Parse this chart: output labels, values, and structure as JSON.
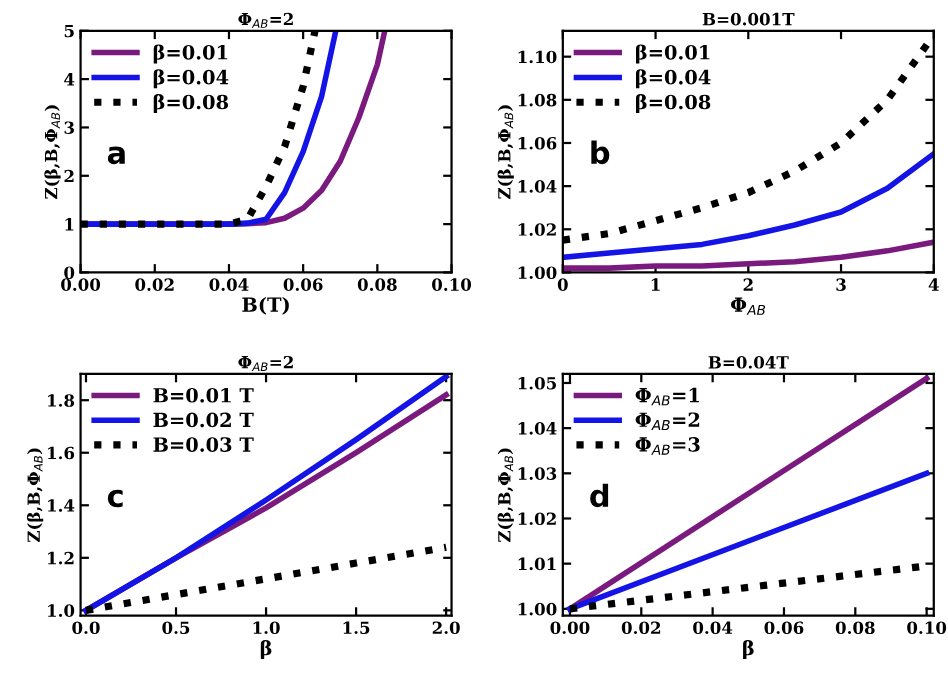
{
  "chart_data": [
    {
      "type": "line",
      "title": "Φ$_{AB}$=2",
      "xlabel": "B(T)",
      "ylabel": "Z(β,B,Φ$_{AB}$)",
      "annotations": [
        "a"
      ],
      "legend": "top left",
      "grid": false,
      "xlim": [
        0,
        0.1
      ],
      "ylim": [
        0,
        5
      ],
      "xticks": [
        {
          "value": 0,
          "label": "0.00"
        },
        {
          "value": 0.02,
          "label": "0.02"
        },
        {
          "value": 0.04,
          "label": "0.04"
        },
        {
          "value": 0.06,
          "label": "0.06"
        },
        {
          "value": 0.08,
          "label": "0.08"
        },
        {
          "value": 0.1,
          "label": "0.10"
        }
      ],
      "yticks": [
        0,
        1,
        2,
        3,
        4,
        5
      ],
      "series": [
        {
          "name": "β=0.01",
          "color": "#7b1a7e",
          "line_style": "solid",
          "x": [
            0,
            0.02,
            0.04,
            0.045,
            0.05,
            0.055,
            0.06,
            0.065,
            0.07,
            0.075,
            0.08,
            0.082
          ],
          "values": [
            1,
            1,
            1,
            1.01,
            1.03,
            1.12,
            1.33,
            1.7,
            2.3,
            3.2,
            4.3,
            5
          ]
        },
        {
          "name": "β=0.04",
          "color": "#1414e6",
          "line_style": "solid",
          "x": [
            0,
            0.02,
            0.04,
            0.045,
            0.05,
            0.055,
            0.06,
            0.065,
            0.0688
          ],
          "values": [
            1,
            1,
            1,
            1.02,
            1.1,
            1.65,
            2.5,
            3.65,
            5
          ]
        },
        {
          "name": "β=0.08",
          "color": "#000000",
          "line_style": "dotted",
          "x": [
            0,
            0.02,
            0.04,
            0.045,
            0.05,
            0.055,
            0.06,
            0.0632
          ],
          "values": [
            1,
            1,
            1.0,
            1.1,
            1.78,
            2.6,
            3.85,
            5
          ]
        }
      ]
    },
    {
      "type": "line",
      "title": "B=0.001T",
      "xlabel": "Φ$_{AB}$",
      "ylabel": "Z(β,B,Φ$_{AB}$)",
      "annotations": [
        "b"
      ],
      "legend": "top left",
      "grid": false,
      "xlim": [
        0,
        4
      ],
      "ylim": [
        1.0,
        1.112
      ],
      "xticks": [
        0,
        1,
        2,
        3,
        4
      ],
      "yticks": [
        {
          "value": 1.0,
          "label": "1.00"
        },
        {
          "value": 1.02,
          "label": "1.02"
        },
        {
          "value": 1.04,
          "label": "1.04"
        },
        {
          "value": 1.06,
          "label": "1.06"
        },
        {
          "value": 1.08,
          "label": "1.08"
        },
        {
          "value": 1.1,
          "label": "1.10"
        }
      ],
      "series": [
        {
          "name": "β=0.01",
          "color": "#7b1a7e",
          "line_style": "solid",
          "x": [
            0,
            0.5,
            1,
            1.5,
            2,
            2.5,
            3,
            3.5,
            4
          ],
          "values": [
            1.002,
            1.002,
            1.003,
            1.003,
            1.004,
            1.005,
            1.007,
            1.01,
            1.014
          ]
        },
        {
          "name": "β=0.04",
          "color": "#1414e6",
          "line_style": "solid",
          "x": [
            0,
            0.5,
            1,
            1.5,
            2,
            2.5,
            3,
            3.5,
            4
          ],
          "values": [
            1.007,
            1.009,
            1.011,
            1.013,
            1.017,
            1.022,
            1.028,
            1.039,
            1.055
          ]
        },
        {
          "name": "β=0.08",
          "color": "#000000",
          "line_style": "dotted",
          "x": [
            0,
            0.5,
            1,
            1.5,
            2,
            2.5,
            3,
            3.5,
            4
          ],
          "values": [
            1.015,
            1.018,
            1.024,
            1.03,
            1.037,
            1.047,
            1.06,
            1.08,
            1.11
          ]
        }
      ]
    },
    {
      "type": "line",
      "title": "Φ$_{AB}$=2",
      "xlabel": "β",
      "ylabel": "Z(β,B,Φ$_{AB}$)",
      "annotations": [
        "c"
      ],
      "legend": "top left",
      "grid": false,
      "xlim": [
        -0.03,
        2.03
      ],
      "ylim": [
        0.98,
        1.9
      ],
      "xticks": [
        {
          "value": 0,
          "label": "0.0"
        },
        {
          "value": 0.5,
          "label": "0.5"
        },
        {
          "value": 1,
          "label": "1.0"
        },
        {
          "value": 1.5,
          "label": "1.5"
        },
        {
          "value": 2,
          "label": "2.0"
        }
      ],
      "yticks": [
        {
          "value": 1.0,
          "label": "1.0"
        },
        {
          "value": 1.2,
          "label": "1.2"
        },
        {
          "value": 1.4,
          "label": "1.4"
        },
        {
          "value": 1.6,
          "label": "1.6"
        },
        {
          "value": 1.8,
          "label": "1.8"
        }
      ],
      "series": [
        {
          "name": "B=0.01 T",
          "color": "#7b1a7e",
          "line_style": "solid",
          "x": [
            0,
            0.5,
            1,
            1.5,
            2
          ],
          "values": [
            1,
            1.2,
            1.39,
            1.6,
            1.82
          ]
        },
        {
          "name": "B=0.02 T",
          "color": "#1414e6",
          "line_style": "solid",
          "x": [
            0,
            0.5,
            1,
            1.5,
            2
          ],
          "values": [
            1,
            1.2,
            1.42,
            1.65,
            1.89
          ]
        },
        {
          "name": "B=0.03 T",
          "color": "#000000",
          "line_style": "dotted",
          "x": [
            0,
            0.5,
            1,
            1.5,
            2
          ],
          "values": [
            1,
            1.06,
            1.12,
            1.18,
            1.24
          ]
        }
      ]
    },
    {
      "type": "line",
      "title": "B=0.04T",
      "xlabel": "β",
      "ylabel": "Z(β,B,Φ$_{AB}$)",
      "annotations": [
        "d"
      ],
      "legend": "top left",
      "grid": false,
      "xlim": [
        -0.002,
        0.102
      ],
      "ylim": [
        0.9985,
        1.052
      ],
      "xticks": [
        {
          "value": 0,
          "label": "0.00"
        },
        {
          "value": 0.02,
          "label": "0.02"
        },
        {
          "value": 0.04,
          "label": "0.04"
        },
        {
          "value": 0.06,
          "label": "0.06"
        },
        {
          "value": 0.08,
          "label": "0.08"
        },
        {
          "value": 0.1,
          "label": "0.10"
        }
      ],
      "yticks": [
        {
          "value": 1.0,
          "label": "1.00"
        },
        {
          "value": 1.01,
          "label": "1.01"
        },
        {
          "value": 1.02,
          "label": "1.02"
        },
        {
          "value": 1.03,
          "label": "1.03"
        },
        {
          "value": 1.04,
          "label": "1.04"
        },
        {
          "value": 1.05,
          "label": "1.05"
        }
      ],
      "series": [
        {
          "name": "Φ$_{AB}$=1",
          "color": "#7b1a7e",
          "line_style": "solid",
          "x": [
            0,
            0.1
          ],
          "values": [
            1.0,
            1.051
          ]
        },
        {
          "name": "Φ$_{AB}$=2",
          "color": "#1414e6",
          "line_style": "solid",
          "x": [
            0,
            0.1
          ],
          "values": [
            1.0,
            1.03
          ]
        },
        {
          "name": "Φ$_{AB}$=3",
          "color": "#000000",
          "line_style": "dotted",
          "x": [
            0,
            0.1
          ],
          "values": [
            1.0,
            1.0095
          ]
        }
      ]
    }
  ]
}
